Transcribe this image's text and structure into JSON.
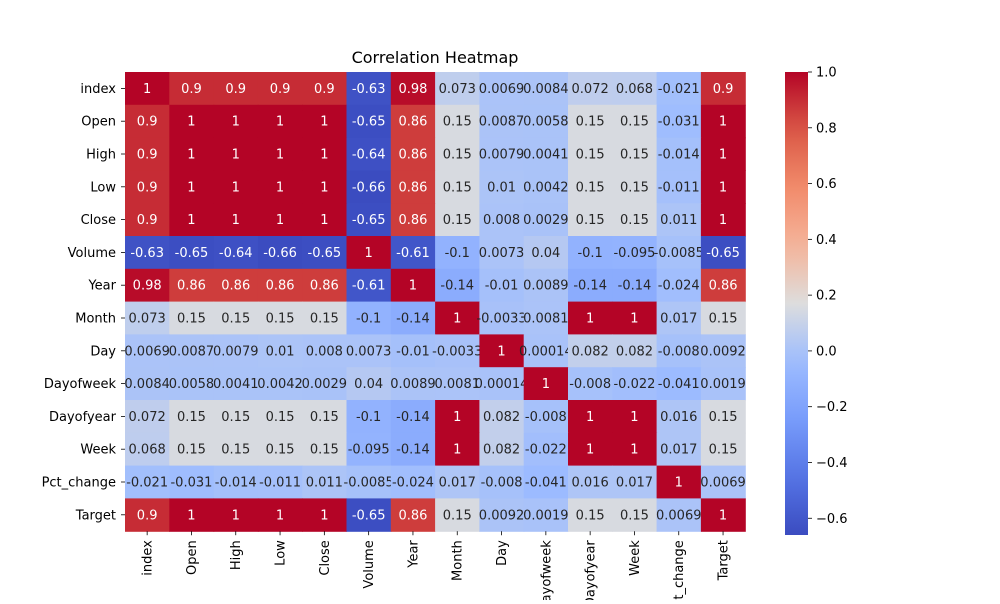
{
  "chart_data": {
    "type": "heatmap",
    "title": "Correlation Heatmap",
    "xlabel": "",
    "ylabel": "",
    "row_labels": [
      "index",
      "Open",
      "High",
      "Low",
      "Close",
      "Volume",
      "Year",
      "Month",
      "Day",
      "Dayofweek",
      "Dayofyear",
      "Week",
      "Pct_change",
      "Target"
    ],
    "col_labels": [
      "index",
      "Open",
      "High",
      "Low",
      "Close",
      "Volume",
      "Year",
      "Month",
      "Day",
      "Dayofweek",
      "Dayofyear",
      "Week",
      "Pct_change",
      "Target"
    ],
    "values": [
      [
        1,
        0.9,
        0.9,
        0.9,
        0.9,
        -0.63,
        0.98,
        0.073,
        0.0069,
        0.0084,
        0.072,
        0.068,
        -0.021,
        0.9
      ],
      [
        0.9,
        1,
        1,
        1,
        1,
        -0.65,
        0.86,
        0.15,
        0.0087,
        0.0058,
        0.15,
        0.15,
        -0.031,
        1
      ],
      [
        0.9,
        1,
        1,
        1,
        1,
        -0.64,
        0.86,
        0.15,
        0.0079,
        0.0041,
        0.15,
        0.15,
        -0.014,
        1
      ],
      [
        0.9,
        1,
        1,
        1,
        1,
        -0.66,
        0.86,
        0.15,
        0.01,
        0.0042,
        0.15,
        0.15,
        -0.011,
        1
      ],
      [
        0.9,
        1,
        1,
        1,
        1,
        -0.65,
        0.86,
        0.15,
        0.008,
        0.0029,
        0.15,
        0.15,
        0.011,
        1
      ],
      [
        -0.63,
        -0.65,
        -0.64,
        -0.66,
        -0.65,
        1,
        -0.61,
        -0.1,
        0.0073,
        0.04,
        -0.1,
        -0.095,
        -0.0085,
        -0.65
      ],
      [
        0.98,
        0.86,
        0.86,
        0.86,
        0.86,
        -0.61,
        1,
        -0.14,
        -0.01,
        0.0089,
        -0.14,
        -0.14,
        -0.024,
        0.86
      ],
      [
        0.073,
        0.15,
        0.15,
        0.15,
        0.15,
        -0.1,
        -0.14,
        1,
        -0.0033,
        0.0081,
        1,
        1,
        0.017,
        0.15
      ],
      [
        0.0069,
        0.0087,
        0.0079,
        0.01,
        0.008,
        0.0073,
        -0.01,
        -0.0033,
        1,
        0.00014,
        0.082,
        0.082,
        -0.008,
        0.0092
      ],
      [
        0.0084,
        0.0058,
        0.0041,
        0.0042,
        0.0029,
        0.04,
        0.0089,
        0.0081,
        0.00014,
        1,
        -0.008,
        -0.022,
        -0.041,
        0.0019
      ],
      [
        0.072,
        0.15,
        0.15,
        0.15,
        0.15,
        -0.1,
        -0.14,
        1,
        0.082,
        -0.008,
        1,
        1,
        0.016,
        0.15
      ],
      [
        0.068,
        0.15,
        0.15,
        0.15,
        0.15,
        -0.095,
        -0.14,
        1,
        0.082,
        -0.022,
        1,
        1,
        0.017,
        0.15
      ],
      [
        -0.021,
        -0.031,
        -0.014,
        -0.011,
        0.011,
        -0.0085,
        -0.024,
        0.017,
        -0.008,
        -0.041,
        0.016,
        0.017,
        1,
        0.0069
      ],
      [
        0.9,
        1,
        1,
        1,
        1,
        -0.65,
        0.86,
        0.15,
        0.0092,
        0.0019,
        0.15,
        0.15,
        0.0069,
        1
      ]
    ],
    "colormap": "coolwarm",
    "vmin": -0.66,
    "vmax": 1.0,
    "colorbar_ticks": [
      1.0,
      0.8,
      0.6,
      0.4,
      0.2,
      0.0,
      -0.2,
      -0.4,
      -0.6
    ],
    "colorbar_tick_labels": [
      "1.0",
      "0.8",
      "0.6",
      "0.4",
      "0.2",
      "0.0",
      "−0.2",
      "−0.4",
      "−0.6"
    ],
    "annotations": true,
    "colorbar_position": "right"
  }
}
